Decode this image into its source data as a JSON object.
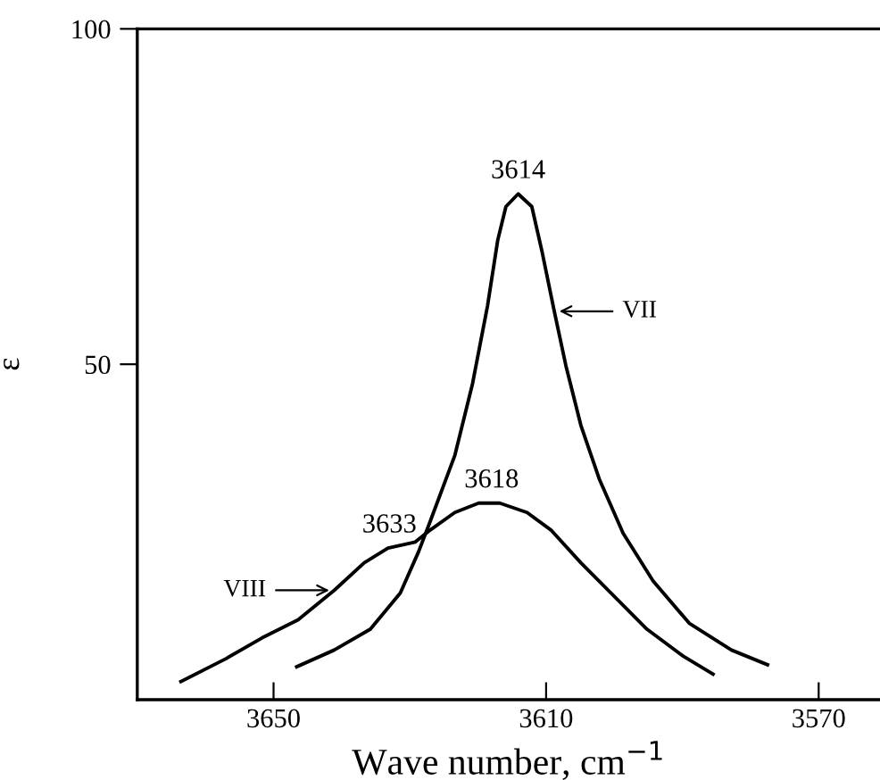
{
  "chart_data": {
    "type": "line",
    "xlabel": "Wave number, cm$^{−1}$",
    "ylabel": "ε",
    "xlim": [
      3670,
      3561
    ],
    "ylim": [
      0,
      100
    ],
    "xticks": [
      3650,
      3610,
      3570
    ],
    "yticks": [
      50,
      100
    ],
    "grid": false,
    "marker": "none",
    "line_style": "solid",
    "series": [
      {
        "name": "VII",
        "color": "#000000",
        "x": [
          3646.6,
          3641.1,
          3635.8,
          3631.4,
          3628.7,
          3627.0,
          3623.4,
          3620.8,
          3618.6,
          3617.1,
          3615.9,
          3614.1,
          3612.1,
          3610.6,
          3608.8,
          3607.1,
          3604.9,
          3602.2,
          3598.7,
          3594.3,
          3589.0,
          3582.8,
          3577.5
        ],
        "values": [
          4.9,
          7.4,
          10.5,
          15.9,
          22.1,
          26.6,
          36.4,
          47.1,
          58.7,
          68.5,
          73.5,
          75.4,
          73.5,
          66.8,
          57.9,
          49.8,
          40.9,
          32.9,
          24.8,
          17.7,
          11.4,
          7.4,
          5.2
        ]
      },
      {
        "name": "VIII",
        "color": "#000000",
        "x": [
          3663.6,
          3657.0,
          3651.7,
          3646.4,
          3641.1,
          3636.7,
          3633.2,
          3629.2,
          3627.0,
          3623.4,
          3619.9,
          3616.8,
          3612.8,
          3609.3,
          3604.9,
          3600.5,
          3595.2,
          3589.9,
          3585.5
        ],
        "values": [
          2.7,
          6.1,
          9.2,
          11.9,
          16.3,
          20.4,
          22.6,
          23.5,
          25.3,
          27.9,
          29.3,
          29.3,
          27.9,
          25.3,
          20.4,
          15.9,
          10.5,
          6.5,
          3.8
        ]
      }
    ],
    "annotations": [
      {
        "text": "3614",
        "x": 3614.1,
        "y": 75.4
      },
      {
        "text": "3618",
        "x": 3618,
        "y": 29.3
      },
      {
        "text": "3633",
        "x": 3633,
        "y": 22.6
      }
    ]
  }
}
